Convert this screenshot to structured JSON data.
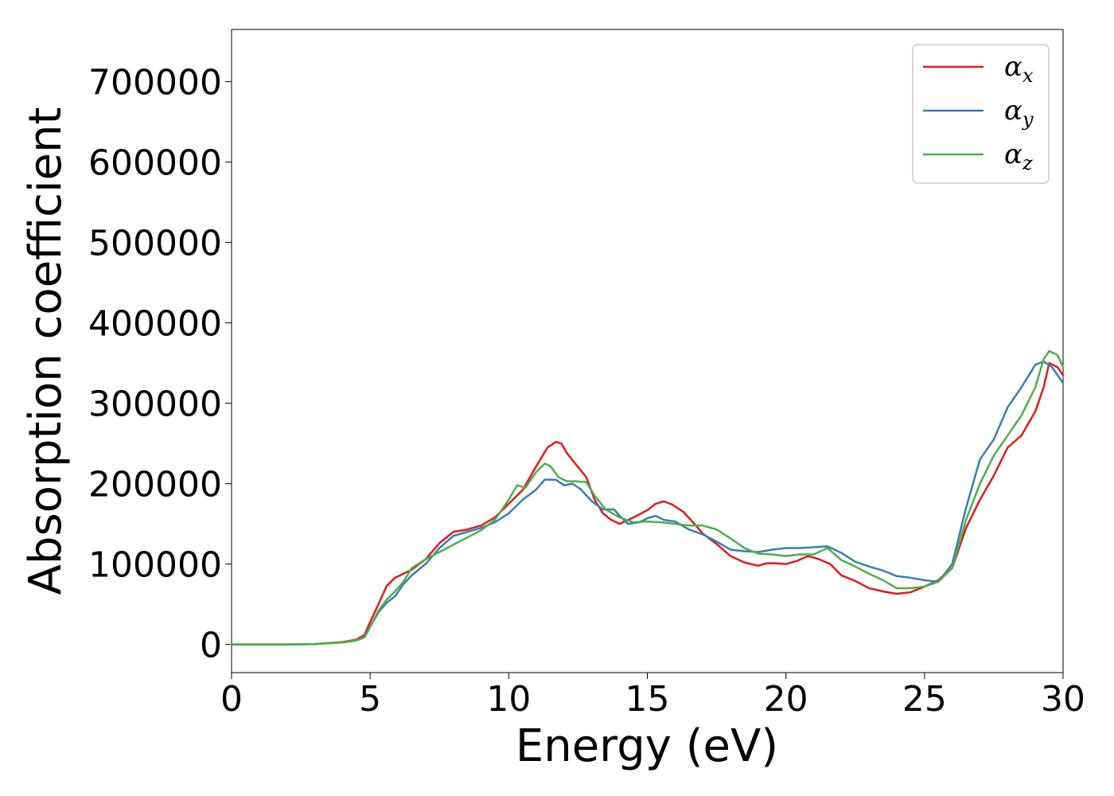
{
  "chart_data": {
    "type": "line",
    "title": "",
    "xlabel": "Energy (eV)",
    "ylabel": "Absorption coefficient",
    "xlim": [
      0,
      30
    ],
    "ylim": [
      -35000,
      765000
    ],
    "xticks": [
      0,
      5,
      10,
      15,
      20,
      25,
      30
    ],
    "yticks": [
      0,
      100000,
      200000,
      300000,
      400000,
      500000,
      600000,
      700000
    ],
    "grid": false,
    "legend_position": "top-right",
    "series": [
      {
        "name": "α_x",
        "symbol": "α",
        "subscript": "x",
        "color": "#e41a1c",
        "x": [
          0,
          2,
          3,
          4,
          4.5,
          4.8,
          5.0,
          5.3,
          5.6,
          5.9,
          6.2,
          6.5,
          7.0,
          7.5,
          8.0,
          8.5,
          9.0,
          9.5,
          10.0,
          10.5,
          11.0,
          11.4,
          11.7,
          11.9,
          12.1,
          12.4,
          12.8,
          13.1,
          13.4,
          13.7,
          14.0,
          14.5,
          15.0,
          15.3,
          15.6,
          15.9,
          16.3,
          16.7,
          17.0,
          17.5,
          18.0,
          18.5,
          19.0,
          19.3,
          19.6,
          20.0,
          20.4,
          20.8,
          21.2,
          21.6,
          22.0,
          22.5,
          23.0,
          23.5,
          24.0,
          24.5,
          25.0,
          25.5,
          26.0,
          26.5,
          27.0,
          27.5,
          28.0,
          28.5,
          29.0,
          29.3,
          29.5,
          29.8,
          30.0
        ],
        "y": [
          0,
          0,
          500,
          3000,
          6000,
          12000,
          28000,
          50000,
          73000,
          83000,
          88000,
          93000,
          106000,
          126000,
          140000,
          143000,
          148000,
          158000,
          175000,
          192000,
          222000,
          245000,
          252000,
          250000,
          238000,
          225000,
          208000,
          180000,
          163000,
          155000,
          150000,
          158000,
          167000,
          175000,
          178000,
          174000,
          165000,
          150000,
          138000,
          125000,
          110000,
          102000,
          98000,
          101000,
          101000,
          100000,
          104000,
          110000,
          106000,
          100000,
          86000,
          79000,
          70000,
          66000,
          63000,
          65000,
          72000,
          80000,
          95000,
          145000,
          180000,
          210000,
          245000,
          260000,
          290000,
          320000,
          350000,
          345000,
          335000
        ]
      },
      {
        "name": "α_y",
        "symbol": "α",
        "subscript": "y",
        "color": "#377eb8",
        "x": [
          0,
          2,
          3,
          4,
          4.5,
          4.8,
          5.0,
          5.3,
          5.6,
          5.9,
          6.2,
          6.5,
          7.0,
          7.5,
          8.0,
          8.5,
          9.0,
          9.5,
          10.0,
          10.5,
          11.0,
          11.3,
          11.7,
          12.0,
          12.3,
          12.6,
          13.0,
          13.4,
          13.8,
          14.0,
          14.3,
          14.7,
          15.0,
          15.3,
          15.6,
          16.0,
          16.5,
          17.0,
          17.5,
          18.0,
          18.5,
          19.0,
          19.5,
          20.0,
          20.5,
          21.0,
          21.5,
          22.0,
          22.5,
          23.0,
          23.5,
          24.0,
          24.5,
          25.0,
          25.5,
          26.0,
          26.5,
          27.0,
          27.5,
          28.0,
          28.5,
          29.0,
          29.3,
          29.6,
          30.0
        ],
        "y": [
          0,
          0,
          500,
          2500,
          5000,
          9000,
          22000,
          40000,
          52000,
          60000,
          75000,
          86000,
          100000,
          120000,
          135000,
          140000,
          145000,
          152000,
          163000,
          180000,
          193000,
          205000,
          205000,
          198000,
          200000,
          193000,
          178000,
          168000,
          168000,
          160000,
          150000,
          152000,
          157000,
          160000,
          155000,
          153000,
          143000,
          137000,
          128000,
          118000,
          116000,
          115000,
          118000,
          120000,
          120000,
          121000,
          122000,
          114000,
          103000,
          97000,
          92000,
          85000,
          83000,
          80000,
          78000,
          100000,
          170000,
          230000,
          255000,
          295000,
          320000,
          348000,
          352000,
          345000,
          325000
        ]
      },
      {
        "name": "α_z",
        "symbol": "α",
        "subscript": "z",
        "color": "#4daf4a",
        "x": [
          0,
          2,
          3,
          4,
          4.5,
          4.8,
          5.0,
          5.3,
          5.6,
          5.9,
          6.2,
          6.5,
          7.0,
          7.5,
          8.0,
          8.5,
          9.0,
          9.5,
          10.0,
          10.3,
          10.6,
          11.0,
          11.3,
          11.5,
          11.8,
          12.1,
          12.4,
          12.8,
          13.1,
          13.5,
          14.0,
          14.5,
          15.0,
          15.5,
          16.0,
          16.5,
          17.0,
          17.5,
          18.0,
          18.5,
          19.0,
          19.5,
          20.0,
          20.5,
          21.0,
          21.5,
          22.0,
          22.5,
          23.0,
          23.5,
          24.0,
          24.5,
          25.0,
          25.5,
          26.0,
          26.5,
          27.0,
          27.5,
          28.0,
          28.5,
          29.0,
          29.3,
          29.5,
          29.8,
          30.0
        ],
        "y": [
          0,
          0,
          500,
          2500,
          5000,
          9000,
          22000,
          42000,
          56000,
          66000,
          78000,
          95000,
          106000,
          115000,
          124000,
          133000,
          142000,
          155000,
          180000,
          198000,
          195000,
          215000,
          225000,
          222000,
          208000,
          203000,
          203000,
          202000,
          185000,
          168000,
          158000,
          152000,
          153000,
          152000,
          150000,
          148000,
          148000,
          143000,
          132000,
          120000,
          113000,
          112000,
          110000,
          112000,
          112000,
          120000,
          105000,
          97000,
          88000,
          80000,
          70000,
          70000,
          72000,
          78000,
          95000,
          155000,
          200000,
          235000,
          260000,
          285000,
          320000,
          355000,
          365000,
          360000,
          345000
        ]
      }
    ]
  }
}
